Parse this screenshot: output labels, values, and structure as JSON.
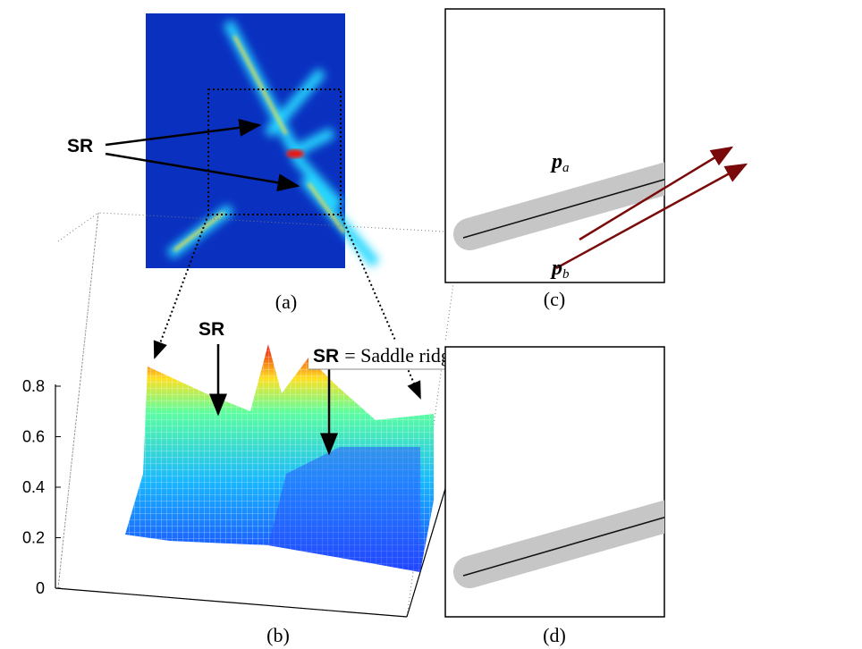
{
  "panel_a": {
    "caption": "(a)",
    "label": "SR"
  },
  "panel_b": {
    "caption": "(b)",
    "label": "SR",
    "legend": {
      "term": "SR",
      "definition": "= Saddle ridge"
    },
    "zticks": [
      0,
      0.2,
      0.4,
      0.6,
      0.8
    ]
  },
  "panel_c": {
    "caption": "(c)",
    "points": [
      {
        "symbol": "p",
        "subscript": "a"
      },
      {
        "symbol": "p",
        "subscript": "b"
      }
    ]
  },
  "panel_d": {
    "caption": "(d)"
  }
}
